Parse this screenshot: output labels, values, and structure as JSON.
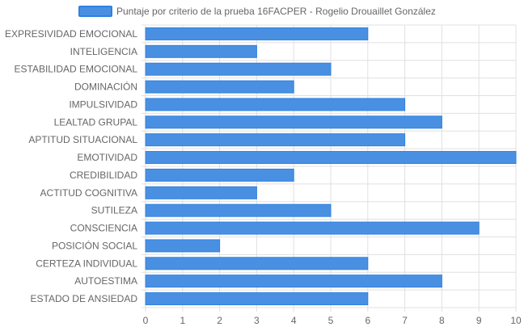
{
  "chart_data": {
    "type": "bar",
    "orientation": "horizontal",
    "categories": [
      "EXPRESIVIDAD EMOCIONAL",
      "INTELIGENCIA",
      "ESTABILIDAD EMOCIONAL",
      "DOMINACIÓN",
      "IMPULSIVIDAD",
      "LEALTAD GRUPAL",
      "APTITUD SITUACIONAL",
      "EMOTIVIDAD",
      "CREDIBILIDAD",
      "ACTITUD COGNITIVA",
      "SUTILEZA",
      "CONSCIENCIA",
      "POSICIÓN SOCIAL",
      "CERTEZA INDIVIDUAL",
      "AUTOESTIMA",
      "ESTADO DE ANSIEDAD"
    ],
    "series": [
      {
        "name": "Puntaje por criterio de la prueba 16FACPER - Rogelio Drouaillet González",
        "values": [
          6,
          3,
          5,
          4,
          7,
          8,
          7,
          10,
          4,
          3,
          5,
          9,
          2,
          6,
          8,
          6
        ],
        "color": "#4a90e2"
      }
    ],
    "xlim": [
      0,
      10
    ],
    "x_ticks": [
      "0",
      "1",
      "2",
      "3",
      "4",
      "5",
      "6",
      "7",
      "8",
      "9",
      "10"
    ],
    "grid": true,
    "legend": "top-center",
    "colors": {
      "bar_fill": "#4a90e2",
      "bar_border": "#2f80e0",
      "grid": "#e0e0e0",
      "text": "#666666"
    }
  }
}
